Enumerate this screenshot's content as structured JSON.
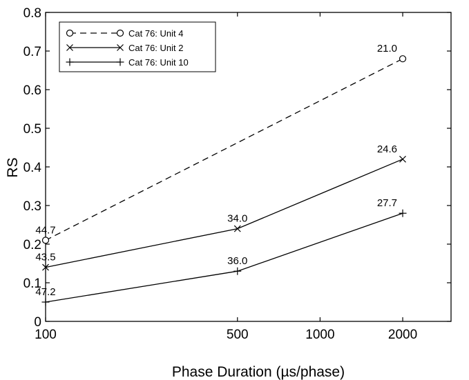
{
  "chart_data": {
    "type": "line",
    "xlabel": "Phase Duration (µs/phase)",
    "ylabel": "RS",
    "x_scale": "log",
    "xlim": [
      100,
      3000
    ],
    "ylim": [
      0,
      0.8
    ],
    "x_ticks": [
      100,
      500,
      1000,
      2000
    ],
    "x_tick_labels": [
      "100",
      "500",
      "1000",
      "2000"
    ],
    "y_ticks": [
      0,
      0.1,
      0.2,
      0.3,
      0.4,
      0.5,
      0.6,
      0.7,
      0.8
    ],
    "y_tick_labels": [
      "0",
      "0.1",
      "0.2",
      "0.3",
      "0.4",
      "0.5",
      "0.6",
      "0.7",
      "0.8"
    ],
    "grid": false,
    "legend_position": "top-left",
    "series": [
      {
        "name": "Cat 76: Unit 4",
        "marker": "circle",
        "line_style": "dashed",
        "color": "#000000",
        "points": [
          {
            "x": 100,
            "y": 0.21,
            "label": "44.7"
          },
          {
            "x": 2000,
            "y": 0.68,
            "label": "21.0"
          }
        ]
      },
      {
        "name": "Cat 76: Unit 2",
        "marker": "x",
        "line_style": "solid",
        "color": "#000000",
        "points": [
          {
            "x": 100,
            "y": 0.14,
            "label": "43.5"
          },
          {
            "x": 500,
            "y": 0.24,
            "label": "34.0"
          },
          {
            "x": 2000,
            "y": 0.42,
            "label": "24.6"
          }
        ]
      },
      {
        "name": "Cat 76: Unit 10",
        "marker": "plus",
        "line_style": "solid",
        "color": "#000000",
        "points": [
          {
            "x": 100,
            "y": 0.05,
            "label": "47.2"
          },
          {
            "x": 500,
            "y": 0.13,
            "label": "36.0"
          },
          {
            "x": 2000,
            "y": 0.28,
            "label": "27.7"
          }
        ]
      }
    ]
  }
}
